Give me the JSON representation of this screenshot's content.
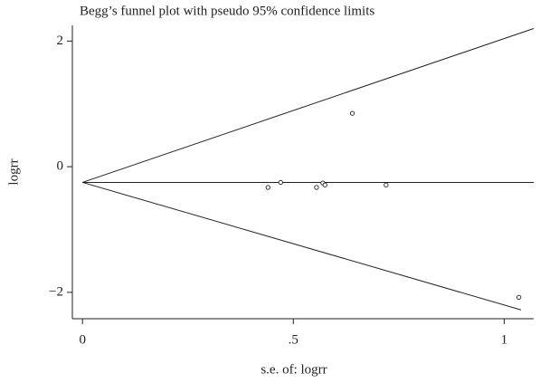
{
  "chart_data": {
    "type": "scatter",
    "title": "Begg’s funnel plot with pseudo 95% confidence limits",
    "x_label": "s.e. of: logrr",
    "y_label": "logrr",
    "x": [
      0.44,
      0.47,
      0.555,
      0.57,
      0.575,
      0.64,
      0.72,
      1.035
    ],
    "values": [
      -0.33,
      -0.25,
      -0.33,
      -0.26,
      -0.29,
      0.85,
      -0.29,
      -2.08
    ],
    "color": "#222222",
    "lines": [
      {
        "x": [
          0,
          1.07
        ],
        "values": [
          -0.25,
          -0.25
        ]
      },
      {
        "x": [
          0,
          1.07
        ],
        "values": [
          -0.25,
          2.2
        ]
      },
      {
        "x": [
          0,
          1.04
        ],
        "values": [
          -0.25,
          -2.28
        ]
      }
    ],
    "xlim": [
      -0.024,
      1.07
    ],
    "ylim": [
      -2.42,
      2.25
    ],
    "xticks": [
      0,
      {
        "value": 0.5,
        "label": ".5"
      },
      1
    ],
    "yticks": [
      2,
      0,
      {
        "value": -2,
        "label": "−2"
      }
    ],
    "grid": false
  }
}
